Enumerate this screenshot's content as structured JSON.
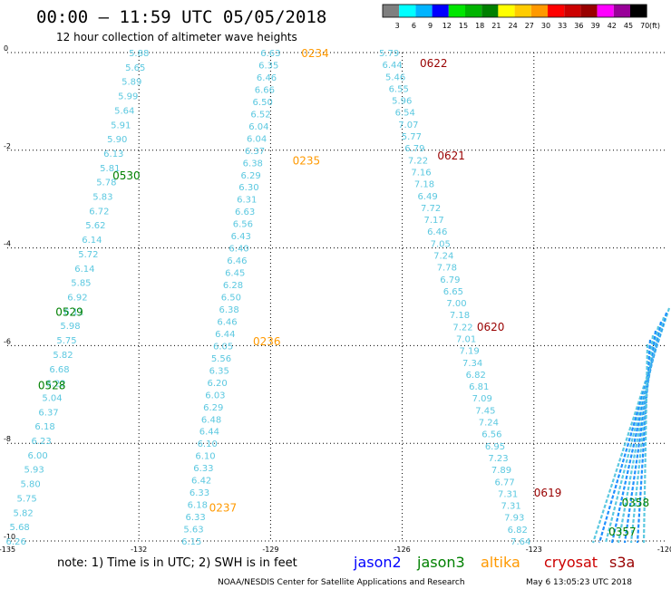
{
  "header": {
    "title": "00:00 – 11:59 UTC 05/05/2018",
    "subtitle": "12 hour collection of altimeter wave heights"
  },
  "colorbar": {
    "unit": "(ft)",
    "bins": [
      {
        "color": "#7f7f7f",
        "label": "3"
      },
      {
        "color": "#00ffff",
        "label": "6"
      },
      {
        "color": "#00b4ff",
        "label": "9"
      },
      {
        "color": "#0000ff",
        "label": "12"
      },
      {
        "color": "#00e600",
        "label": "15"
      },
      {
        "color": "#00b400",
        "label": "18"
      },
      {
        "color": "#008000",
        "label": "21"
      },
      {
        "color": "#ffff00",
        "label": "24"
      },
      {
        "color": "#ffcc00",
        "label": "27"
      },
      {
        "color": "#ff9900",
        "label": "30"
      },
      {
        "color": "#ff0000",
        "label": "33"
      },
      {
        "color": "#cc0000",
        "label": "36"
      },
      {
        "color": "#990000",
        "label": "39"
      },
      {
        "color": "#ff00ff",
        "label": "42"
      },
      {
        "color": "#990099",
        "label": "45"
      },
      {
        "color": "#000000",
        "label": "70"
      }
    ]
  },
  "footer": {
    "note": "note:  1) Time is in UTC;  2) SWH is in feet",
    "satellites": [
      {
        "name": "jason2",
        "color": "#0000ff"
      },
      {
        "name": "jason3",
        "color": "#008000"
      },
      {
        "name": "altika",
        "color": "#ff9900"
      },
      {
        "name": "cryosat",
        "color": "#cc0000"
      },
      {
        "name": "s3a",
        "color": "#990000"
      }
    ],
    "credit": "NOAA/NESDIS Center for Satellite Applications and Research",
    "timestamp": "May  6 13:05:23 UTC 2018"
  },
  "chart_data": {
    "type": "scatter",
    "title": "00:00 – 11:59 UTC 05/05/2018",
    "subtitle": "12 hour collection of altimeter wave heights",
    "xlim": [
      -135,
      -120
    ],
    "ylim": [
      -10,
      0
    ],
    "x_ticks": [
      "-135",
      "-132",
      "-129",
      "-126",
      "-123",
      "-120"
    ],
    "y_ticks": [
      "0",
      "-2",
      "-4",
      "-6",
      "-8",
      "-10"
    ],
    "grid": true,
    "tracks": [
      {
        "color": "#5bc8e0",
        "x_start": -132.0,
        "x_end": -134.8,
        "values": [
          "5.88",
          "5.65",
          "5.89",
          "5.99",
          "5.64",
          "5.91",
          "5.90",
          "6.13",
          "5.81",
          "5.78",
          "5.83",
          "6.72",
          "5.62",
          "6.14",
          "5.72",
          "6.14",
          "5.85",
          "6.92",
          "6.11",
          "5.98",
          "5.75",
          "5.82",
          "6.68",
          "6.22",
          "5.04",
          "6.37",
          "6.18",
          "6.23",
          "6.00",
          "5.93",
          "5.80",
          "5.75",
          "5.82",
          "5.68",
          "6.26"
        ]
      },
      {
        "color": "#5bc8e0",
        "x_start": -129.0,
        "x_end": -130.8,
        "values": [
          "6.63",
          "6.35",
          "6.46",
          "6.66",
          "6.50",
          "6.52",
          "6.04",
          "6.04",
          "6.37",
          "6.38",
          "6.29",
          "6.30",
          "6.31",
          "6.63",
          "6.56",
          "6.43",
          "6.40",
          "6.46",
          "6.45",
          "6.28",
          "6.50",
          "6.38",
          "6.46",
          "6.44",
          "6.05",
          "5.56",
          "6.35",
          "6.20",
          "6.03",
          "6.29",
          "6.48",
          "6.44",
          "6.10",
          "6.10",
          "6.33",
          "6.42",
          "6.33",
          "6.18",
          "6.33",
          "5.63",
          "6.15"
        ]
      },
      {
        "color": "#5bc8e0",
        "x_start": -126.3,
        "x_end": -123.3,
        "values": [
          "5.79",
          "6.44",
          "5.46",
          "6.55",
          "5.96",
          "6.54",
          "7.07",
          "5.77",
          "6.79",
          "7.22",
          "7.16",
          "7.18",
          "6.49",
          "7.72",
          "7.17",
          "6.46",
          "7.05",
          "7.24",
          "7.78",
          "6.79",
          "6.65",
          "7.00",
          "7.18",
          "7.22",
          "7.01",
          "7.19",
          "7.34",
          "6.82",
          "6.81",
          "7.09",
          "7.45",
          "7.24",
          "6.56",
          "6.95",
          "7.23",
          "7.89",
          "6.77",
          "7.31",
          "7.31",
          "7.93",
          "6.82",
          "7.64"
        ]
      }
    ],
    "time_labels": [
      {
        "text": "0528",
        "x": -134.3,
        "y": -6.8,
        "color": "#008000"
      },
      {
        "text": "0529",
        "x": -133.9,
        "y": -5.3,
        "color": "#008000"
      },
      {
        "text": "0530",
        "x": -132.6,
        "y": -2.5,
        "color": "#008000"
      },
      {
        "text": "0234",
        "x": -128.3,
        "y": 0.0,
        "color": "#ff9900"
      },
      {
        "text": "0235",
        "x": -128.5,
        "y": -2.2,
        "color": "#ff9900"
      },
      {
        "text": "0236",
        "x": -129.4,
        "y": -5.9,
        "color": "#ff9900"
      },
      {
        "text": "0237",
        "x": -130.4,
        "y": -9.3,
        "color": "#ff9900"
      },
      {
        "text": "0622",
        "x": -125.6,
        "y": -0.2,
        "color": "#990000"
      },
      {
        "text": "0621",
        "x": -125.2,
        "y": -2.1,
        "color": "#990000"
      },
      {
        "text": "0620",
        "x": -124.3,
        "y": -5.6,
        "color": "#990000"
      },
      {
        "text": "0619",
        "x": -123.0,
        "y": -9.0,
        "color": "#990000"
      },
      {
        "text": "0358",
        "x": -121.0,
        "y": -9.2,
        "color": "#008000"
      },
      {
        "text": "0357",
        "x": -121.3,
        "y": -9.8,
        "color": "#008000"
      }
    ]
  }
}
